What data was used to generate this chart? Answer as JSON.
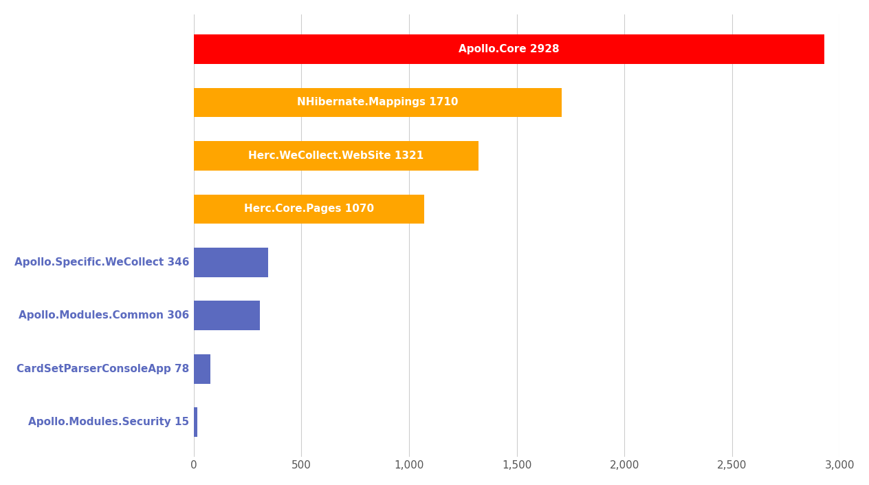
{
  "categories": [
    "Apollo.Modules.Security 15",
    "CardSetParserConsoleApp 78",
    "Apollo.Modules.Common 306",
    "Apollo.Specific.WeCollect 346",
    "Herc.Core.Pages 1070",
    "Herc.WeCollect.WebSite 1321",
    "NHibernate.Mappings 1710",
    "Apollo.Core 2928"
  ],
  "values": [
    15,
    78,
    306,
    346,
    1070,
    1321,
    1710,
    2928
  ],
  "colors": [
    "#5b6abf",
    "#5b6abf",
    "#5b6abf",
    "#5b6abf",
    "#ffa500",
    "#ffa500",
    "#ffa500",
    "#ff0000"
  ],
  "xlim": [
    0,
    3000
  ],
  "xticks": [
    0,
    500,
    1000,
    1500,
    2000,
    2500,
    3000
  ],
  "background_color": "#ffffff",
  "grid_color": "#cccccc",
  "bar_height": 0.55,
  "label_fontsize": 11,
  "blue_color": "#5b6abf"
}
